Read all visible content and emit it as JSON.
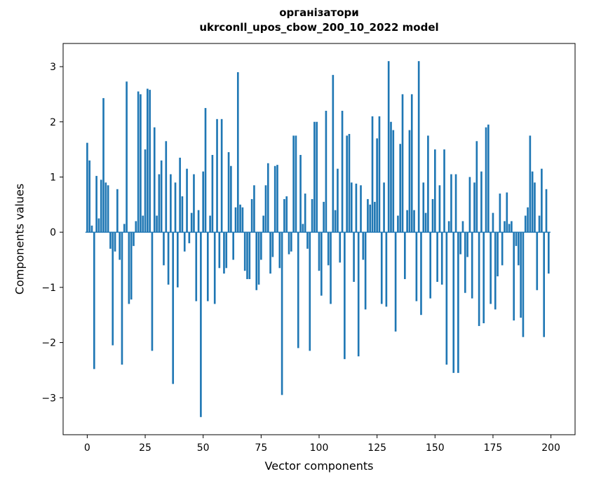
{
  "chart_data": {
    "type": "bar",
    "title": "організатори",
    "subtitle": "ukrconll_upos_cbow_200_10_2022 model",
    "xlabel": "Vector components",
    "ylabel": "Components values",
    "bar_color": "#1f77b4",
    "axis_color": "#000000",
    "background_color": "#ffffff",
    "legend": "none",
    "grid": false,
    "x_ticks": [
      0,
      25,
      50,
      75,
      100,
      125,
      150,
      175,
      200
    ],
    "x_tick_labels": [
      "0",
      "25",
      "50",
      "75",
      "100",
      "125",
      "150",
      "175",
      "200"
    ],
    "y_ticks": [
      -3,
      -2,
      -1,
      0,
      1,
      2,
      3
    ],
    "y_tick_labels": [
      "−3",
      "−2",
      "−1",
      "0",
      "1",
      "2",
      "3"
    ],
    "xlim": [
      -10.4,
      210.4
    ],
    "ylim": [
      -3.67,
      3.42
    ],
    "x_start": 0,
    "values": [
      1.62,
      1.3,
      0.12,
      -2.48,
      1.02,
      0.25,
      0.95,
      2.43,
      0.9,
      0.85,
      -0.3,
      -2.05,
      -0.35,
      0.78,
      -0.5,
      -2.4,
      0.15,
      2.73,
      -1.3,
      -1.22,
      -0.25,
      0.2,
      2.55,
      2.5,
      0.3,
      1.5,
      2.6,
      2.58,
      -2.15,
      1.9,
      0.3,
      1.05,
      1.3,
      -0.6,
      1.65,
      -0.95,
      1.05,
      -2.75,
      0.9,
      -1.0,
      1.35,
      0.65,
      -0.35,
      1.15,
      -0.2,
      0.35,
      1.05,
      -1.25,
      0.4,
      -3.35,
      1.1,
      2.25,
      -1.25,
      0.3,
      1.4,
      -1.3,
      2.05,
      -0.65,
      2.05,
      -0.75,
      -0.65,
      1.45,
      1.2,
      -0.5,
      0.45,
      2.9,
      0.5,
      0.45,
      -0.7,
      -0.85,
      -0.85,
      0.6,
      0.85,
      -1.05,
      -0.95,
      -0.5,
      0.3,
      0.85,
      1.25,
      -0.75,
      -0.45,
      1.2,
      1.22,
      -0.65,
      -2.95,
      0.6,
      0.65,
      -0.4,
      -0.35,
      1.75,
      1.75,
      -2.1,
      1.4,
      0.15,
      0.7,
      -0.3,
      -2.15,
      0.6,
      2.0,
      2.0,
      -0.7,
      -1.15,
      0.55,
      2.2,
      -0.6,
      -1.3,
      2.85,
      0.4,
      1.15,
      -0.55,
      2.2,
      -2.3,
      1.75,
      1.78,
      0.9,
      -0.9,
      0.88,
      -2.25,
      0.85,
      -0.5,
      -1.4,
      0.6,
      0.5,
      2.1,
      0.55,
      1.7,
      2.1,
      -1.3,
      0.9,
      -1.35,
      3.1,
      2.0,
      1.85,
      -1.8,
      0.3,
      1.6,
      2.5,
      -0.85,
      0.4,
      1.85,
      2.5,
      0.4,
      -1.25,
      3.1,
      -1.5,
      0.9,
      0.35,
      1.75,
      -1.2,
      0.6,
      1.5,
      -0.9,
      0.85,
      -0.95,
      1.5,
      -2.4,
      0.2,
      1.05,
      -2.55,
      1.05,
      -2.55,
      -0.4,
      0.2,
      -1.1,
      -0.45,
      1.0,
      -1.2,
      0.9,
      1.65,
      -1.7,
      1.1,
      -1.65,
      1.9,
      1.95,
      -1.3,
      0.35,
      -1.4,
      -0.8,
      0.7,
      -0.6,
      0.2,
      0.72,
      0.15,
      0.2,
      -1.6,
      -0.25,
      -0.6,
      -1.55,
      -1.9,
      0.3,
      0.45,
      1.75,
      1.1,
      0.9,
      -1.05,
      0.3,
      1.15,
      -1.9,
      0.78,
      -0.75
    ]
  }
}
